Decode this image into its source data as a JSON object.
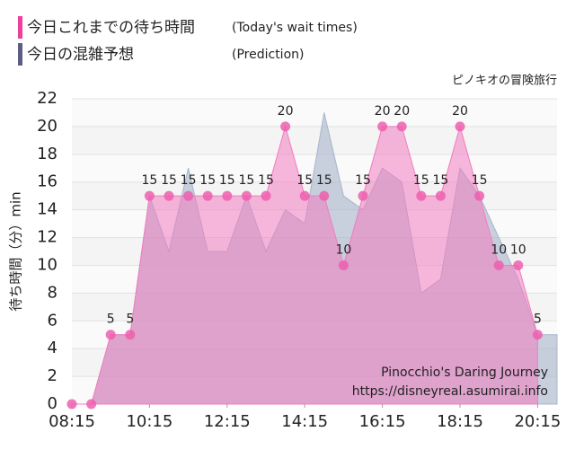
{
  "chart_data": {
    "type": "area",
    "title": "ピノキオの冒険旅行",
    "ylabel": "待ち時間（分）min",
    "legend_labels": [
      {
        "name": "今日これまでの待ち時間",
        "note": "(Today's wait times)"
      },
      {
        "name": "今日の混雑予想",
        "note": "(Prediction)"
      }
    ],
    "watermark": [
      "Pinocchio's Daring Journey",
      "https://disneyreal.asumirai.info"
    ],
    "xlim": [
      "08:15",
      "20:45"
    ],
    "xticks": [
      "08:15",
      "10:15",
      "12:15",
      "14:15",
      "16:15",
      "18:15",
      "20:15"
    ],
    "ylim": [
      0,
      22
    ],
    "yticks": [
      0,
      2,
      4,
      6,
      8,
      10,
      12,
      14,
      16,
      18,
      20,
      22
    ],
    "grid": true,
    "series": [
      {
        "color": "#a7b4cc",
        "x": [
          "08:45",
          "09:15",
          "09:45",
          "10:15",
          "10:45",
          "11:15",
          "11:45",
          "12:15",
          "12:45",
          "13:15",
          "13:45",
          "14:15",
          "14:45",
          "15:15",
          "15:45",
          "16:15",
          "16:45",
          "17:15",
          "17:45",
          "18:15",
          "18:45",
          "19:15",
          "19:45",
          "20:15",
          "20:45"
        ],
        "values": [
          0,
          5,
          5,
          15,
          11,
          17,
          11,
          11,
          15,
          11,
          14,
          13,
          21,
          15,
          14,
          17,
          16,
          8,
          9,
          17,
          15,
          12,
          9,
          5,
          5
        ]
      },
      {
        "color": "#f27cbf",
        "x": [
          "08:15",
          "08:45",
          "09:15",
          "09:45",
          "10:15",
          "10:45",
          "11:15",
          "11:45",
          "12:15",
          "12:45",
          "13:15",
          "13:45",
          "14:15",
          "14:45",
          "15:15",
          "15:45",
          "16:15",
          "16:45",
          "17:15",
          "17:45",
          "18:15",
          "18:45",
          "19:15",
          "19:45",
          "20:15"
        ],
        "values": [
          0,
          0,
          5,
          5,
          15,
          15,
          15,
          15,
          15,
          15,
          15,
          20,
          15,
          15,
          10,
          15,
          20,
          20,
          15,
          15,
          20,
          15,
          10,
          10,
          5
        ]
      }
    ]
  }
}
